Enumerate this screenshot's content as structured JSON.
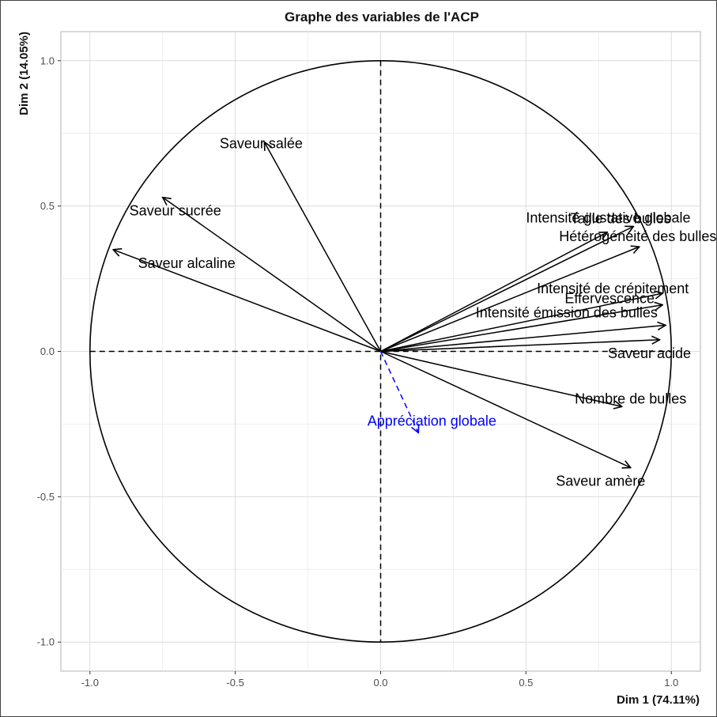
{
  "chart_data": {
    "type": "scatter",
    "title": "Graphe des variables de l'ACP",
    "xlabel": "Dim 1 (74.11%)",
    "ylabel": "Dim 2 (14.05%)",
    "xlim": [
      -1.1,
      1.1
    ],
    "ylim": [
      -1.1,
      1.1
    ],
    "x_ticks": [
      -1.0,
      -0.5,
      0.0,
      0.5,
      1.0
    ],
    "y_ticks": [
      -1.0,
      -0.5,
      0.0,
      0.5,
      1.0
    ],
    "x_tick_labels": [
      "-1.0",
      "-0.5",
      "0.0",
      "0.5",
      "1.0"
    ],
    "y_tick_labels": [
      "-1.0",
      "-0.5",
      "0.0",
      "0.5",
      "1.0"
    ],
    "grid": true,
    "unit_circle": true,
    "series": [
      {
        "name": "",
        "color": "#000000",
        "line_style": "solid",
        "points": [
          {
            "label": "Saveur salée",
            "x": -0.4,
            "y": 0.72
          },
          {
            "label": "Saveur sucrée",
            "x": -0.75,
            "y": 0.53
          },
          {
            "label": "Saveur alcaline",
            "x": -0.92,
            "y": 0.35
          },
          {
            "label": "Intensité gustative globale",
            "x": 0.87,
            "y": 0.43
          },
          {
            "label": "Taille des bulles",
            "x": 0.78,
            "y": 0.41
          },
          {
            "label": "Hétérogénéité des bulles",
            "x": 0.89,
            "y": 0.36
          },
          {
            "label": "Intensité de crépitement",
            "x": 0.97,
            "y": 0.2
          },
          {
            "label": "Effervescence",
            "x": 0.97,
            "y": 0.16
          },
          {
            "label": "Intensité émission des bulles",
            "x": 0.98,
            "y": 0.09
          },
          {
            "label": "Saveur acide",
            "x": 0.96,
            "y": 0.04
          },
          {
            "label": "Nombre de bulles",
            "x": 0.83,
            "y": -0.19
          },
          {
            "label": "Saveur amère",
            "x": 0.86,
            "y": -0.4
          }
        ]
      },
      {
        "name": "",
        "color": "#0000ff",
        "line_style": "dashed",
        "points": [
          {
            "label": "Appréciation globale",
            "x": 0.13,
            "y": -0.28
          }
        ]
      }
    ]
  }
}
